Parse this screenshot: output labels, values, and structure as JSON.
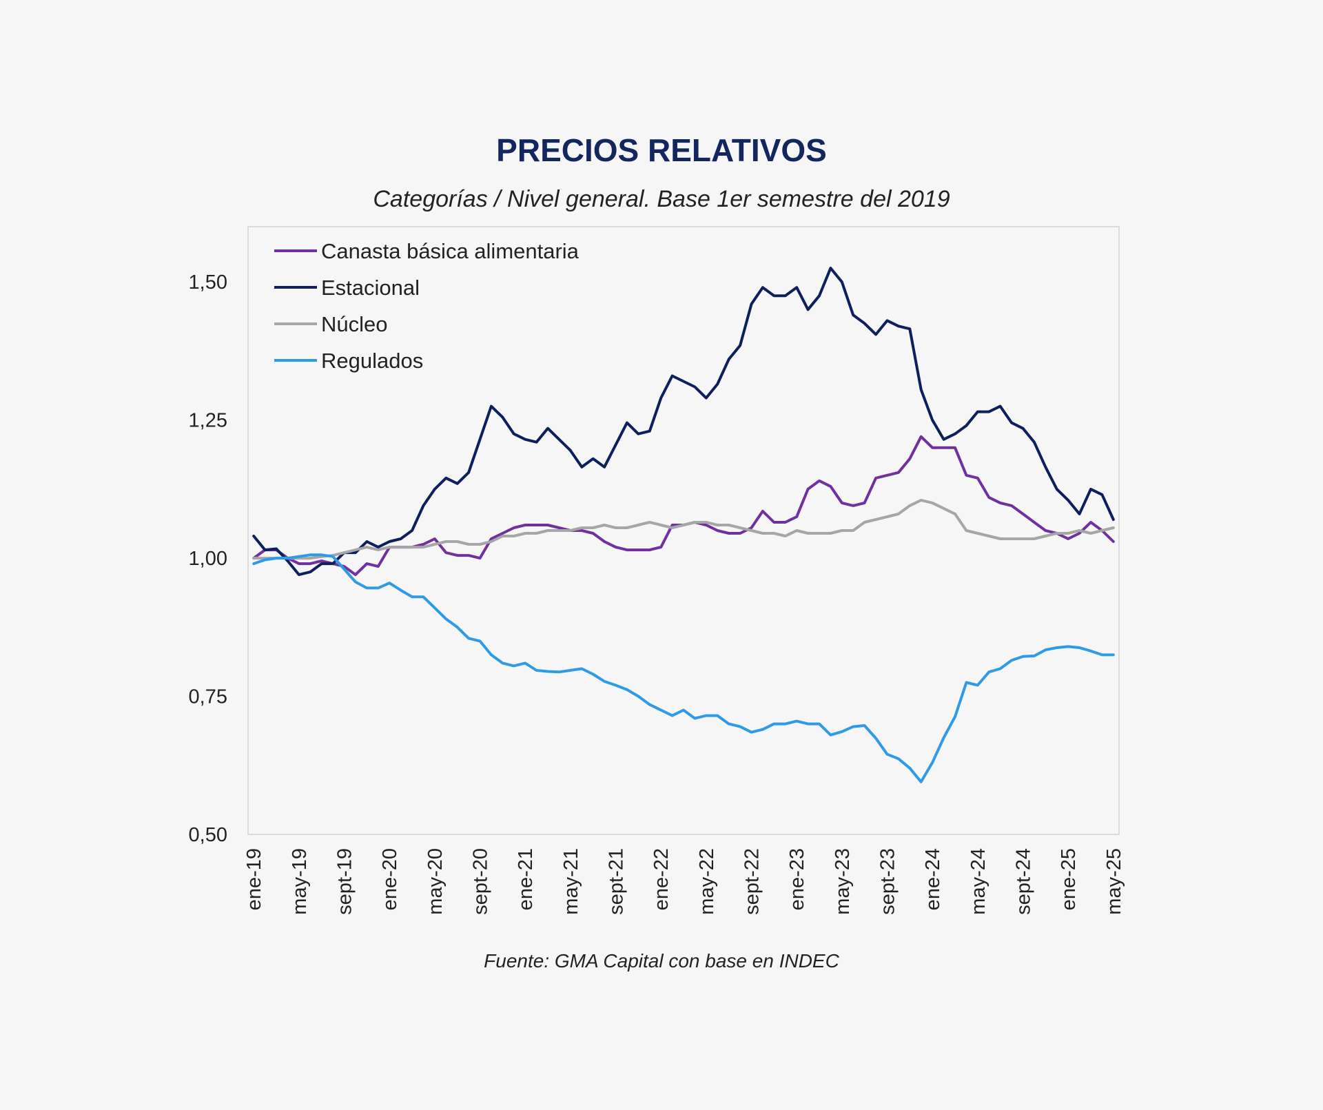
{
  "chart_data": {
    "type": "line",
    "title": "PRECIOS RELATIVOS",
    "subtitle": "Categorías / Nivel general. Base 1er semestre del 2019",
    "source": "Fuente: GMA Capital con base en INDEC",
    "xlabel": "",
    "ylabel": "",
    "ylim": [
      0.5,
      1.6
    ],
    "y_ticks": [
      0.5,
      0.75,
      1.0,
      1.25,
      1.5
    ],
    "y_tick_labels": [
      "0,50",
      "0,75",
      "1,00",
      "1,25",
      "1,50"
    ],
    "x_range": [
      "ene-19",
      "may-25"
    ],
    "x_tick_labels": [
      "ene-19",
      "may-19",
      "sept-19",
      "ene-20",
      "may-20",
      "sept-20",
      "ene-21",
      "may-21",
      "sept-21",
      "ene-22",
      "may-22",
      "sept-22",
      "ene-23",
      "may-23",
      "sept-23",
      "ene-24",
      "may-24",
      "sept-24",
      "ene-25",
      "may-25"
    ],
    "x_tick_every_months": 4,
    "grid": false,
    "legend_position": "top-left",
    "series": [
      {
        "name": "Canasta básica alimentaria",
        "color": "#7030a0",
        "values": [
          1.0,
          1.015,
          1.015,
          1.0,
          0.99,
          0.99,
          0.995,
          0.99,
          0.985,
          0.97,
          0.99,
          0.985,
          1.02,
          1.02,
          1.02,
          1.025,
          1.035,
          1.01,
          1.005,
          1.005,
          1.0,
          1.035,
          1.045,
          1.055,
          1.06,
          1.06,
          1.06,
          1.055,
          1.05,
          1.05,
          1.045,
          1.03,
          1.02,
          1.015,
          1.015,
          1.015,
          1.02,
          1.06,
          1.06,
          1.065,
          1.06,
          1.05,
          1.045,
          1.045,
          1.055,
          1.085,
          1.065,
          1.065,
          1.075,
          1.125,
          1.14,
          1.13,
          1.1,
          1.095,
          1.1,
          1.145,
          1.15,
          1.155,
          1.18,
          1.22,
          1.2,
          1.2,
          1.2,
          1.15,
          1.145,
          1.11,
          1.1,
          1.095,
          1.08,
          1.065,
          1.05,
          1.045,
          1.035,
          1.045,
          1.065,
          1.05,
          1.03
        ]
      },
      {
        "name": "Estacional",
        "color": "#0d1f5c",
        "values": [
          1.04,
          1.015,
          1.017,
          0.995,
          0.97,
          0.975,
          0.99,
          0.99,
          1.01,
          1.01,
          1.03,
          1.02,
          1.03,
          1.035,
          1.05,
          1.095,
          1.125,
          1.145,
          1.135,
          1.155,
          1.215,
          1.275,
          1.255,
          1.225,
          1.215,
          1.21,
          1.235,
          1.215,
          1.195,
          1.165,
          1.18,
          1.165,
          1.205,
          1.245,
          1.225,
          1.23,
          1.29,
          1.33,
          1.32,
          1.31,
          1.29,
          1.315,
          1.36,
          1.385,
          1.46,
          1.49,
          1.475,
          1.475,
          1.49,
          1.45,
          1.475,
          1.525,
          1.5,
          1.44,
          1.425,
          1.405,
          1.43,
          1.42,
          1.415,
          1.305,
          1.25,
          1.215,
          1.225,
          1.24,
          1.265,
          1.265,
          1.275,
          1.245,
          1.235,
          1.21,
          1.165,
          1.125,
          1.105,
          1.08,
          1.125,
          1.115,
          1.07
        ]
      },
      {
        "name": "Núcleo",
        "color": "#a6a6a6",
        "values": [
          1.0,
          1.0,
          1.0,
          1.0,
          1.0,
          1.0,
          1.003,
          1.005,
          1.01,
          1.015,
          1.02,
          1.015,
          1.02,
          1.02,
          1.02,
          1.02,
          1.025,
          1.03,
          1.03,
          1.025,
          1.025,
          1.03,
          1.04,
          1.04,
          1.045,
          1.045,
          1.05,
          1.05,
          1.05,
          1.055,
          1.055,
          1.06,
          1.055,
          1.055,
          1.06,
          1.065,
          1.06,
          1.055,
          1.06,
          1.065,
          1.065,
          1.06,
          1.06,
          1.055,
          1.05,
          1.045,
          1.045,
          1.04,
          1.05,
          1.045,
          1.045,
          1.045,
          1.05,
          1.05,
          1.065,
          1.07,
          1.075,
          1.08,
          1.095,
          1.105,
          1.1,
          1.09,
          1.08,
          1.05,
          1.045,
          1.04,
          1.035,
          1.035,
          1.035,
          1.035,
          1.04,
          1.045,
          1.045,
          1.05,
          1.045,
          1.05,
          1.055
        ]
      },
      {
        "name": "Regulados",
        "color": "#2f9be6",
        "values": [
          0.99,
          0.997,
          1.0,
          1.0,
          1.003,
          1.006,
          1.006,
          1.003,
          0.98,
          0.957,
          0.946,
          0.946,
          0.955,
          0.942,
          0.93,
          0.93,
          0.91,
          0.89,
          0.875,
          0.855,
          0.85,
          0.825,
          0.81,
          0.805,
          0.81,
          0.797,
          0.795,
          0.794,
          0.797,
          0.8,
          0.79,
          0.777,
          0.77,
          0.762,
          0.75,
          0.735,
          0.725,
          0.715,
          0.725,
          0.71,
          0.715,
          0.715,
          0.7,
          0.695,
          0.685,
          0.69,
          0.7,
          0.7,
          0.705,
          0.7,
          0.7,
          0.68,
          0.686,
          0.695,
          0.697,
          0.674,
          0.645,
          0.637,
          0.62,
          0.595,
          0.63,
          0.675,
          0.713,
          0.775,
          0.77,
          0.794,
          0.8,
          0.815,
          0.822,
          0.823,
          0.834,
          0.838,
          0.84,
          0.838,
          0.832,
          0.825,
          0.825
        ]
      }
    ]
  }
}
